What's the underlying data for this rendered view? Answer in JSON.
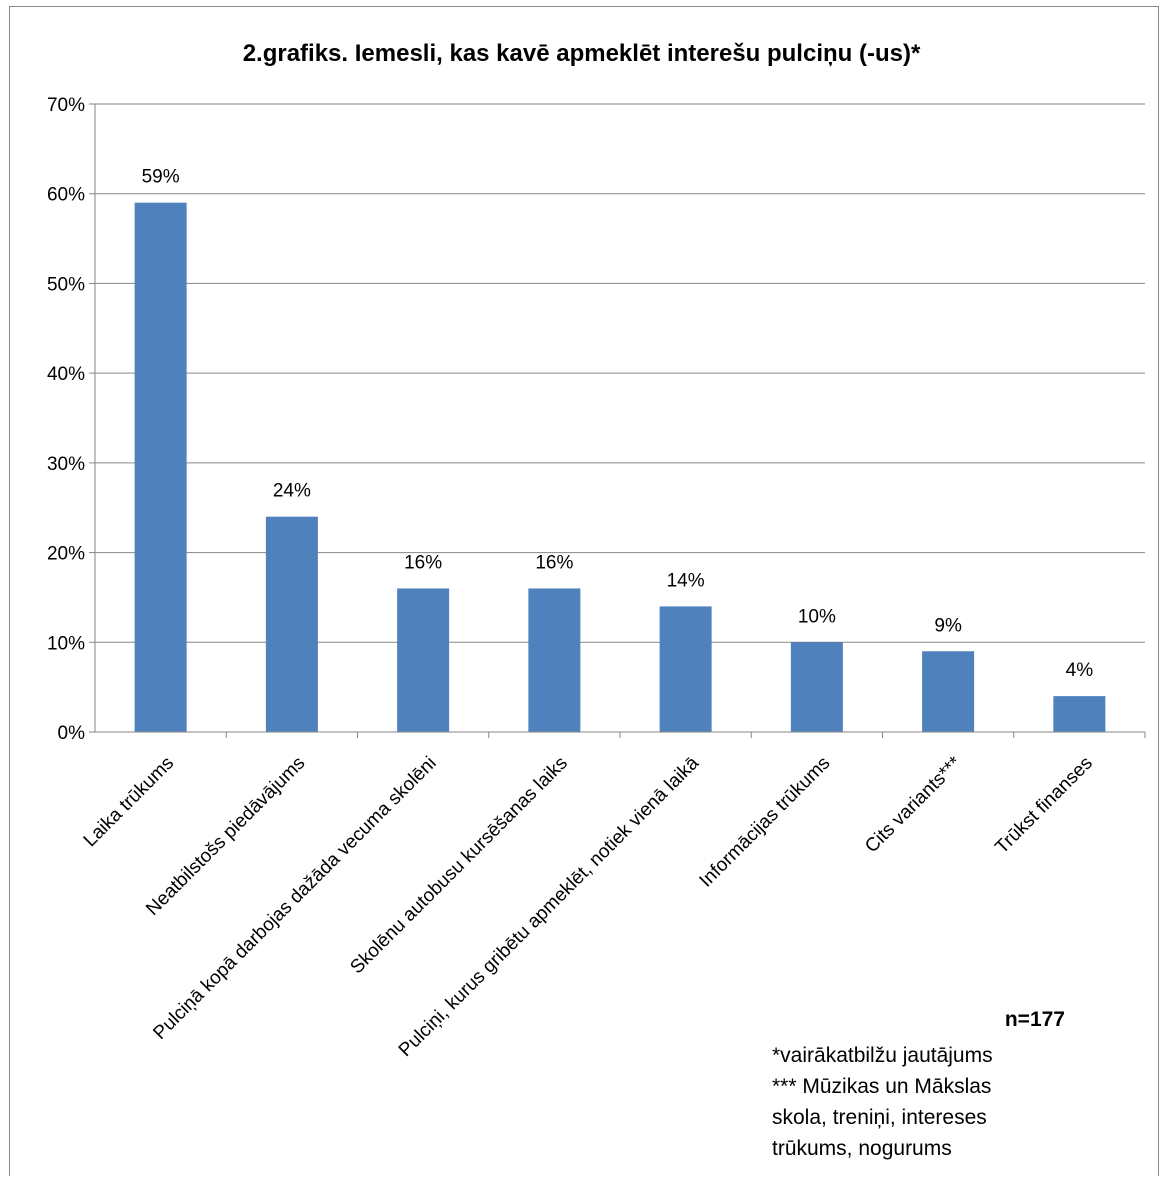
{
  "chart_data": {
    "type": "bar",
    "title": "2.grafiks. Iemesli, kas kavē apmeklēt interešu pulciņu (-us)*",
    "categories": [
      "Laika trūkums",
      "Neatbilstošs piedāvājums",
      "Pulciņā kopā darbojas dažāda vecuma skolēni",
      "Skolēnu autobusu kursēšanas laiks",
      "Pulciņi, kurus gribētu apmeklēt, notiek vienā laikā",
      "Informācijas trūkums",
      "Cits variants***",
      "Trūkst finanses"
    ],
    "values": [
      59,
      24,
      16,
      16,
      14,
      10,
      9,
      4
    ],
    "value_labels": [
      "59%",
      "24%",
      "16%",
      "16%",
      "14%",
      "10%",
      "9%",
      "4%"
    ],
    "xlabel": "",
    "ylabel": "",
    "ylim": [
      0,
      70
    ],
    "yticks": [
      0,
      10,
      20,
      30,
      40,
      50,
      60,
      70
    ],
    "ytick_labels": [
      "0%",
      "10%",
      "20%",
      "30%",
      "40%",
      "50%",
      "60%",
      "70%"
    ],
    "grid": true,
    "bar_color": "#4f81bd",
    "grid_color": "#868686"
  },
  "notes": {
    "n": "n=177",
    "lines": [
      "*vairākatbilžu jautājums",
      "*** Mūzikas un Mākslas",
      "skola, treniņi, intereses",
      "trūkums, nogurums"
    ]
  }
}
